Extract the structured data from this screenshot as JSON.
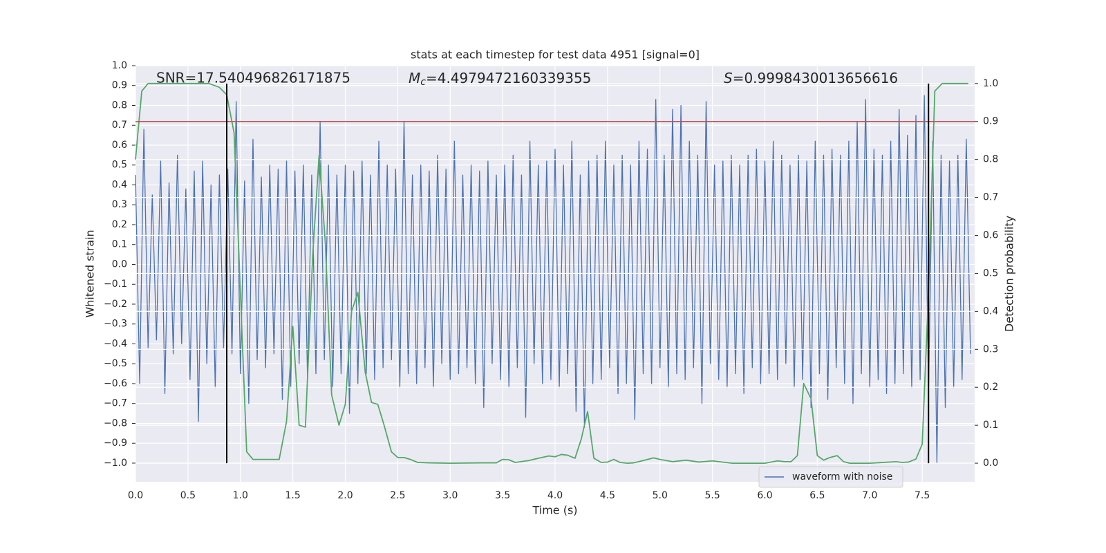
{
  "chart_data": {
    "type": "line",
    "title": "stats at each timestep for test data 4951 [signal=0]",
    "xlabel": "Time (s)",
    "ylabel": "Whitened strain",
    "y2label": "Detection probability",
    "annotations": {
      "snr": "SNR=17.540496826171875",
      "mc": {
        "symbol": "M",
        "sub": "c",
        "value": "=4.4979472160339355"
      },
      "s": {
        "symbol": "S",
        "value": "=0.9998430013656616"
      }
    },
    "xlim": [
      0,
      8.0
    ],
    "xticks": [
      {
        "value": 0,
        "label": "0.0"
      },
      {
        "value": 0.5,
        "label": "0.5"
      },
      {
        "value": 1,
        "label": "1.0"
      },
      {
        "value": 1.5,
        "label": "1.5"
      },
      {
        "value": 2,
        "label": "2.0"
      },
      {
        "value": 2.5,
        "label": "2.5"
      },
      {
        "value": 3,
        "label": "3.0"
      },
      {
        "value": 3.5,
        "label": "3.5"
      },
      {
        "value": 4,
        "label": "4.0"
      },
      {
        "value": 4.5,
        "label": "4.5"
      },
      {
        "value": 5,
        "label": "5.0"
      },
      {
        "value": 5.5,
        "label": "5.5"
      },
      {
        "value": 6,
        "label": "6.0"
      },
      {
        "value": 6.5,
        "label": "6.5"
      },
      {
        "value": 7,
        "label": "7.0"
      },
      {
        "value": 7.5,
        "label": "7.5"
      }
    ],
    "ylim": [
      -1.094,
      1.0
    ],
    "yticks": [
      {
        "value": -1,
        "label": "−1.0"
      },
      {
        "value": -0.9,
        "label": "−0.9"
      },
      {
        "value": -0.8,
        "label": "−0.8"
      },
      {
        "value": -0.7,
        "label": "−0.7"
      },
      {
        "value": -0.6,
        "label": "−0.6"
      },
      {
        "value": -0.5,
        "label": "−0.5"
      },
      {
        "value": -0.4,
        "label": "−0.4"
      },
      {
        "value": -0.3,
        "label": "−0.3"
      },
      {
        "value": -0.2,
        "label": "−0.2"
      },
      {
        "value": -0.1,
        "label": "−0.1"
      },
      {
        "value": 0,
        "label": "0.0"
      },
      {
        "value": 0.1,
        "label": "0.1"
      },
      {
        "value": 0.2,
        "label": "0.2"
      },
      {
        "value": 0.3,
        "label": "0.3"
      },
      {
        "value": 0.4,
        "label": "0.4"
      },
      {
        "value": 0.5,
        "label": "0.5"
      },
      {
        "value": 0.6,
        "label": "0.6"
      },
      {
        "value": 0.7,
        "label": "0.7"
      },
      {
        "value": 0.8,
        "label": "0.8"
      },
      {
        "value": 0.9,
        "label": "0.9"
      },
      {
        "value": 1,
        "label": "1.0"
      }
    ],
    "y2lim": [
      -0.049,
      1.047
    ],
    "y2ticks": [
      {
        "value": 0,
        "label": "0.0"
      },
      {
        "value": 0.1,
        "label": "0.1"
      },
      {
        "value": 0.2,
        "label": "0.2"
      },
      {
        "value": 0.3,
        "label": "0.3"
      },
      {
        "value": 0.4,
        "label": "0.4"
      },
      {
        "value": 0.5,
        "label": "0.5"
      },
      {
        "value": 0.6,
        "label": "0.6"
      },
      {
        "value": 0.7,
        "label": "0.7"
      },
      {
        "value": 0.8,
        "label": "0.8"
      },
      {
        "value": 0.9,
        "label": "0.9"
      },
      {
        "value": 1,
        "label": "1.0"
      }
    ],
    "grid": true,
    "legend": "lower right",
    "series": [
      {
        "name": "waveform with noise",
        "color": "#4c72b0",
        "x": [
          0,
          0.04,
          0.08,
          0.12,
          0.16,
          0.2,
          0.24,
          0.28,
          0.32,
          0.36,
          0.4,
          0.44,
          0.48,
          0.52,
          0.56,
          0.6,
          0.64,
          0.68,
          0.72,
          0.76,
          0.8,
          0.84,
          0.88,
          0.92,
          0.96,
          1,
          1.04,
          1.08,
          1.12,
          1.16,
          1.2,
          1.24,
          1.28,
          1.32,
          1.36,
          1.4,
          1.44,
          1.48,
          1.52,
          1.56,
          1.6,
          1.64,
          1.68,
          1.72,
          1.76,
          1.8,
          1.84,
          1.88,
          1.92,
          1.96,
          2,
          2.04,
          2.08,
          2.12,
          2.16,
          2.2,
          2.24,
          2.28,
          2.32,
          2.36,
          2.4,
          2.44,
          2.48,
          2.52,
          2.56,
          2.6,
          2.64,
          2.68,
          2.72,
          2.76,
          2.8,
          2.84,
          2.88,
          2.92,
          2.96,
          3,
          3.04,
          3.08,
          3.12,
          3.16,
          3.2,
          3.24,
          3.28,
          3.32,
          3.36,
          3.4,
          3.44,
          3.48,
          3.52,
          3.56,
          3.6,
          3.64,
          3.68,
          3.72,
          3.76,
          3.8,
          3.84,
          3.88,
          3.92,
          3.96,
          4,
          4.04,
          4.08,
          4.12,
          4.16,
          4.2,
          4.24,
          4.28,
          4.32,
          4.36,
          4.4,
          4.44,
          4.48,
          4.52,
          4.56,
          4.6,
          4.64,
          4.68,
          4.72,
          4.76,
          4.8,
          4.84,
          4.88,
          4.92,
          4.96,
          5,
          5.04,
          5.08,
          5.12,
          5.16,
          5.2,
          5.24,
          5.28,
          5.32,
          5.36,
          5.4,
          5.44,
          5.48,
          5.52,
          5.56,
          5.6,
          5.64,
          5.68,
          5.72,
          5.76,
          5.8,
          5.84,
          5.88,
          5.92,
          5.96,
          6,
          6.04,
          6.08,
          6.12,
          6.16,
          6.2,
          6.24,
          6.28,
          6.32,
          6.36,
          6.4,
          6.44,
          6.48,
          6.52,
          6.56,
          6.6,
          6.64,
          6.68,
          6.72,
          6.76,
          6.8,
          6.84,
          6.88,
          6.92,
          6.96,
          7,
          7.04,
          7.08,
          7.12,
          7.16,
          7.2,
          7.24,
          7.28,
          7.32,
          7.36,
          7.4,
          7.44,
          7.48,
          7.52,
          7.56,
          7.6,
          7.64,
          7.68,
          7.72,
          7.76,
          7.8,
          7.84,
          7.88,
          7.92,
          7.96
        ],
        "values": [
          0.45,
          -0.6,
          0.68,
          -0.42,
          0.35,
          -0.38,
          0.52,
          -0.65,
          0.41,
          -0.45,
          0.55,
          -0.4,
          0.38,
          -0.58,
          0.47,
          -0.79,
          0.52,
          -0.5,
          0.4,
          -0.62,
          0.45,
          -0.42,
          0.48,
          -0.45,
          0.82,
          -0.55,
          0.42,
          -0.7,
          0.63,
          -0.48,
          0.44,
          -0.52,
          0.5,
          -0.45,
          0.48,
          -0.68,
          0.52,
          -0.62,
          0.47,
          -0.5,
          0.5,
          -0.58,
          0.45,
          -0.55,
          0.72,
          -0.48,
          0.5,
          -0.62,
          0.45,
          -0.55,
          0.5,
          -0.75,
          0.47,
          -0.6,
          0.52,
          -0.55,
          0.45,
          -0.58,
          0.62,
          -0.52,
          0.5,
          -0.48,
          0.48,
          -0.62,
          0.72,
          -0.55,
          0.45,
          -0.6,
          0.5,
          -0.52,
          0.47,
          -0.62,
          0.55,
          -0.5,
          0.48,
          -0.58,
          0.62,
          -0.55,
          0.45,
          -0.52,
          0.5,
          -0.6,
          0.47,
          -0.72,
          0.52,
          -0.5,
          0.45,
          -0.58,
          0.5,
          -0.62,
          0.55,
          -0.52,
          0.45,
          -0.77,
          0.62,
          -0.5,
          0.5,
          -0.6,
          0.52,
          -0.58,
          0.58,
          -0.62,
          0.5,
          -0.55,
          0.62,
          -0.74,
          0.45,
          -0.82,
          0.52,
          -0.6,
          0.55,
          -0.58,
          0.62,
          -0.52,
          0.5,
          -0.65,
          0.55,
          -0.6,
          0.5,
          -0.78,
          0.62,
          -0.55,
          0.58,
          -0.6,
          0.83,
          -0.52,
          0.55,
          -0.62,
          0.78,
          -0.55,
          0.8,
          -0.58,
          0.62,
          -0.52,
          0.55,
          -0.7,
          0.82,
          -0.5,
          0.5,
          -0.58,
          0.52,
          -0.62,
          0.55,
          -0.55,
          0.5,
          -0.65,
          0.55,
          -0.52,
          0.58,
          -0.6,
          0.52,
          -0.55,
          0.62,
          -0.58,
          0.55,
          -0.5,
          0.5,
          -0.62,
          0.55,
          -0.58,
          0.52,
          -0.72,
          0.62,
          -0.55,
          0.55,
          -0.68,
          0.58,
          -0.52,
          0.55,
          -0.6,
          0.62,
          -0.7,
          0.72,
          -0.55,
          0.83,
          -0.62,
          0.58,
          -0.58,
          0.55,
          -0.65,
          0.62,
          -0.6,
          0.78,
          -0.55,
          0.65,
          -0.62,
          0.75,
          -0.58,
          0.85,
          -0.65,
          0.62,
          -1.0,
          0.55,
          -0.72,
          0.52,
          -0.62,
          0.55,
          -0.58,
          0.63,
          -0.45
        ]
      },
      {
        "color": "#55a868",
        "axis": "y2",
        "x": [
          0,
          0.06,
          0.12,
          0.5,
          0.7,
          0.8,
          0.87,
          0.94,
          1,
          1.06,
          1.12,
          1.25,
          1.31,
          1.37,
          1.44,
          1.5,
          1.56,
          1.62,
          1.69,
          1.75,
          1.81,
          1.87,
          1.94,
          2,
          2.06,
          2.12,
          2.19,
          2.25,
          2.31,
          2.37,
          2.44,
          2.5,
          2.56,
          2.62,
          2.69,
          2.8,
          3,
          3.3,
          3.44,
          3.5,
          3.56,
          3.62,
          3.75,
          3.81,
          3.94,
          4,
          4.06,
          4.12,
          4.19,
          4.25,
          4.31,
          4.37,
          4.44,
          4.5,
          4.56,
          4.62,
          4.69,
          4.75,
          4.81,
          4.94,
          5,
          5.12,
          5.25,
          5.37,
          5.5,
          5.56,
          5.69,
          6,
          6.12,
          6.19,
          6.25,
          6.31,
          6.37,
          6.44,
          6.5,
          6.56,
          6.62,
          6.69,
          6.75,
          6.81,
          7,
          7.19,
          7.25,
          7.31,
          7.37,
          7.44,
          7.5,
          7.56,
          7.62,
          7.69,
          7.94
        ],
        "values": [
          0.8,
          0.98,
          1.0,
          1.0,
          1.0,
          0.99,
          0.97,
          0.87,
          0.45,
          0.03,
          0.01,
          0.01,
          0.01,
          0.01,
          0.11,
          0.36,
          0.1,
          0.095,
          0.55,
          0.81,
          0.58,
          0.18,
          0.1,
          0.155,
          0.4,
          0.45,
          0.24,
          0.16,
          0.155,
          0.1,
          0.03,
          0.015,
          0.015,
          0.01,
          0.002,
          0.001,
          0.0,
          0.001,
          0.001,
          0.01,
          0.009,
          0.002,
          0.007,
          0.011,
          0.019,
          0.017,
          0.023,
          0.021,
          0.013,
          0.064,
          0.136,
          0.013,
          0.002,
          0.003,
          0.01,
          0.002,
          0.0,
          0.001,
          0.005,
          0.014,
          0.01,
          0.004,
          0.008,
          0.003,
          0.006,
          0.004,
          0.0,
          0.0,
          0.006,
          0.004,
          0.004,
          0.02,
          0.21,
          0.17,
          0.02,
          0.008,
          0.015,
          0.02,
          0.004,
          0.0,
          0.0,
          0.003,
          0.004,
          0.002,
          0.003,
          0.011,
          0.05,
          0.45,
          0.98,
          1.0,
          1.0
        ]
      }
    ],
    "hline": {
      "value": 0.9,
      "axis": "y2",
      "color": "#c44e52"
    },
    "vlines": {
      "x": [
        0.87,
        7.56
      ],
      "color": "#000000"
    },
    "background": "#eaeaf2"
  }
}
